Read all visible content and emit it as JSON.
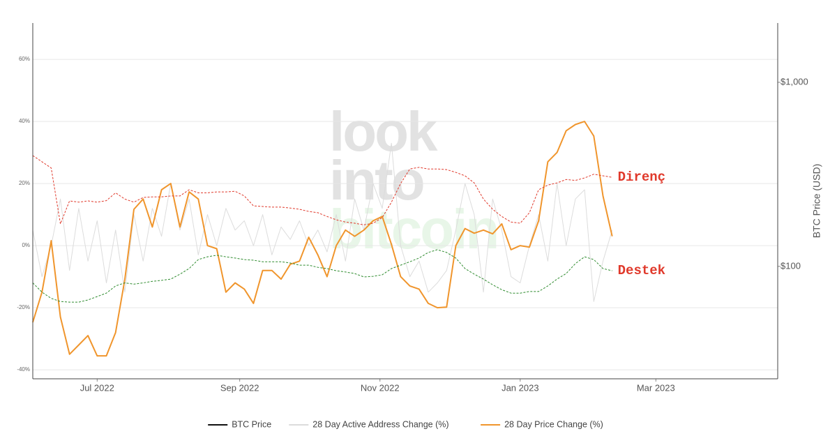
{
  "chart_data": {
    "type": "line",
    "watermark": [
      "look",
      "into",
      "bitcoin"
    ],
    "y2_label": "BTC Price (USD)",
    "x": [
      "2022-06-03",
      "2022-06-07",
      "2022-06-11",
      "2022-06-15",
      "2022-06-19",
      "2022-06-23",
      "2022-06-27",
      "2022-07-01",
      "2022-07-05",
      "2022-07-09",
      "2022-07-13",
      "2022-07-17",
      "2022-07-21",
      "2022-07-25",
      "2022-07-29",
      "2022-08-02",
      "2022-08-06",
      "2022-08-10",
      "2022-08-14",
      "2022-08-18",
      "2022-08-22",
      "2022-08-26",
      "2022-08-30",
      "2022-09-03",
      "2022-09-07",
      "2022-09-11",
      "2022-09-15",
      "2022-09-19",
      "2022-09-23",
      "2022-09-27",
      "2022-10-01",
      "2022-10-05",
      "2022-10-09",
      "2022-10-13",
      "2022-10-17",
      "2022-10-21",
      "2022-10-25",
      "2022-10-29",
      "2022-11-02",
      "2022-11-06",
      "2022-11-10",
      "2022-11-14",
      "2022-11-18",
      "2022-11-22",
      "2022-11-26",
      "2022-11-30",
      "2022-12-04",
      "2022-12-08",
      "2022-12-12",
      "2022-12-16",
      "2022-12-20",
      "2022-12-24",
      "2022-12-28",
      "2023-01-01",
      "2023-01-05",
      "2023-01-09",
      "2023-01-13",
      "2023-01-17",
      "2023-01-21",
      "2023-01-25",
      "2023-01-29",
      "2023-02-02",
      "2023-02-06",
      "2023-02-10"
    ],
    "xlim": [
      "2022-06-03",
      "2023-04-23"
    ],
    "xticks": [
      {
        "value": "2022-07-01",
        "label": "Jul 2022"
      },
      {
        "value": "2022-09-01",
        "label": "Sep 2022"
      },
      {
        "value": "2022-11-01",
        "label": "Nov 2022"
      },
      {
        "value": "2023-01-01",
        "label": "Jan 2023"
      },
      {
        "value": "2023-03-01",
        "label": "Mar 2023"
      }
    ],
    "ylim": [
      -42.9,
      71.7
    ],
    "yticks": [
      {
        "value": -40,
        "label": "-40%"
      },
      {
        "value": -20,
        "label": "-20%"
      },
      {
        "value": 0,
        "label": "0%"
      },
      {
        "value": 20,
        "label": "20%"
      },
      {
        "value": 40,
        "label": "40%"
      },
      {
        "value": 60,
        "label": "60%"
      }
    ],
    "y2lim": [
      24.5,
      2100
    ],
    "y2scale": "log",
    "y2ticks": [
      {
        "value": 100,
        "label": "$100"
      },
      {
        "value": 1000,
        "label": "$1,000"
      }
    ],
    "grid": true,
    "legend": "bottom",
    "series": [
      {
        "name": "BTC Price",
        "color": "#111111",
        "axis": "y2",
        "values": [
          null,
          null,
          null,
          null,
          null,
          null,
          null,
          null,
          null,
          null,
          null,
          null,
          null,
          null,
          null,
          null,
          null,
          null,
          null,
          null,
          null,
          null,
          null,
          null,
          null,
          null,
          null,
          null,
          null,
          null,
          null,
          null,
          null,
          null,
          null,
          null,
          null,
          null,
          null,
          null,
          null,
          null,
          null,
          null,
          null,
          null,
          null,
          null,
          null,
          null,
          null,
          null,
          null,
          null,
          null,
          null,
          null,
          null,
          null,
          null,
          null,
          null,
          null,
          null
        ]
      },
      {
        "name": "28 Day Active Address Change (%)",
        "color": "#dcdcdc",
        "axis": "y",
        "values": [
          5,
          -10,
          0,
          15,
          -8,
          12,
          -5,
          8,
          -12,
          5,
          -15,
          10,
          -5,
          12,
          3,
          20,
          5,
          15,
          -3,
          10,
          0,
          12,
          5,
          8,
          0,
          10,
          -3,
          6,
          2,
          8,
          0,
          5,
          -2,
          10,
          -5,
          15,
          5,
          20,
          12,
          33,
          0,
          -10,
          -5,
          -15,
          -12,
          -8,
          5,
          20,
          10,
          -15,
          15,
          5,
          -10,
          -12,
          0,
          10,
          -5,
          20,
          0,
          15,
          18,
          -18,
          -5,
          5
        ]
      },
      {
        "name": "28 Day Price Change (%)",
        "color": "#f0952c",
        "axis": "y",
        "values": [
          -24.7,
          -15,
          1.6,
          -23,
          -35,
          -32,
          -29,
          -35.5,
          -35.5,
          -28,
          -11,
          11.7,
          15,
          6,
          18,
          20,
          6,
          17.3,
          15,
          0,
          -1,
          -15,
          -12,
          -14,
          -18.6,
          -8,
          -8,
          -10.8,
          -6,
          -5,
          2.7,
          -3,
          -10,
          0,
          5,
          3,
          5,
          8,
          9.4,
          0.4,
          -10,
          -13,
          -14,
          -18.6,
          -20,
          -19.8,
          0,
          5.5,
          4,
          5,
          3.8,
          7,
          -1.3,
          0,
          -0.5,
          8,
          27,
          30,
          37,
          39,
          40,
          35.3,
          16,
          3
        ]
      },
      {
        "name": "Direnç",
        "color": "#e0392b",
        "axis": "y",
        "dash": true,
        "end_label": true,
        "label_color": "#e0392b",
        "values": [
          29,
          27,
          25,
          7,
          14.4,
          14,
          14.4,
          14,
          14.5,
          17,
          15,
          14,
          15.5,
          15.7,
          15.7,
          16,
          16,
          18,
          17,
          17,
          17.3,
          17.3,
          17.5,
          16,
          12.8,
          12.6,
          12.4,
          12.4,
          12.1,
          11.7,
          11,
          10.6,
          9.4,
          8.3,
          7.6,
          7.2,
          6.7,
          7.2,
          9,
          14,
          20,
          24.7,
          25.2,
          24.7,
          24.7,
          24.5,
          23.6,
          22.5,
          20.2,
          15,
          11.7,
          9.4,
          7.6,
          7.2,
          10.6,
          18,
          19.5,
          20.2,
          21.3,
          21,
          21.8,
          23,
          22.5,
          22
        ]
      },
      {
        "name": "Destek",
        "color": "#2e8b2e",
        "axis": "y",
        "dash": true,
        "end_label": true,
        "label_color": "#e0392b",
        "values": [
          -12,
          -15,
          -17,
          -18,
          -18.2,
          -18.2,
          -17.5,
          -16.4,
          -15.3,
          -13,
          -12,
          -12.4,
          -12,
          -11.5,
          -11.2,
          -10.8,
          -9.2,
          -7.4,
          -4.5,
          -3.6,
          -3.1,
          -3.6,
          -4,
          -4.5,
          -4.7,
          -5.2,
          -5.2,
          -5.2,
          -5.6,
          -6.3,
          -6.3,
          -7,
          -7.4,
          -8.1,
          -8.5,
          -9,
          -10.1,
          -9.9,
          -9.4,
          -7.4,
          -6.3,
          -5.2,
          -4,
          -2.2,
          -1.3,
          -2.2,
          -4,
          -7.4,
          -9.2,
          -10.8,
          -12.6,
          -14.2,
          -15.3,
          -15.3,
          -14.8,
          -14.8,
          -13,
          -10.8,
          -9,
          -5.8,
          -3.6,
          -4.5,
          -7.4,
          -8.1
        ]
      }
    ]
  }
}
